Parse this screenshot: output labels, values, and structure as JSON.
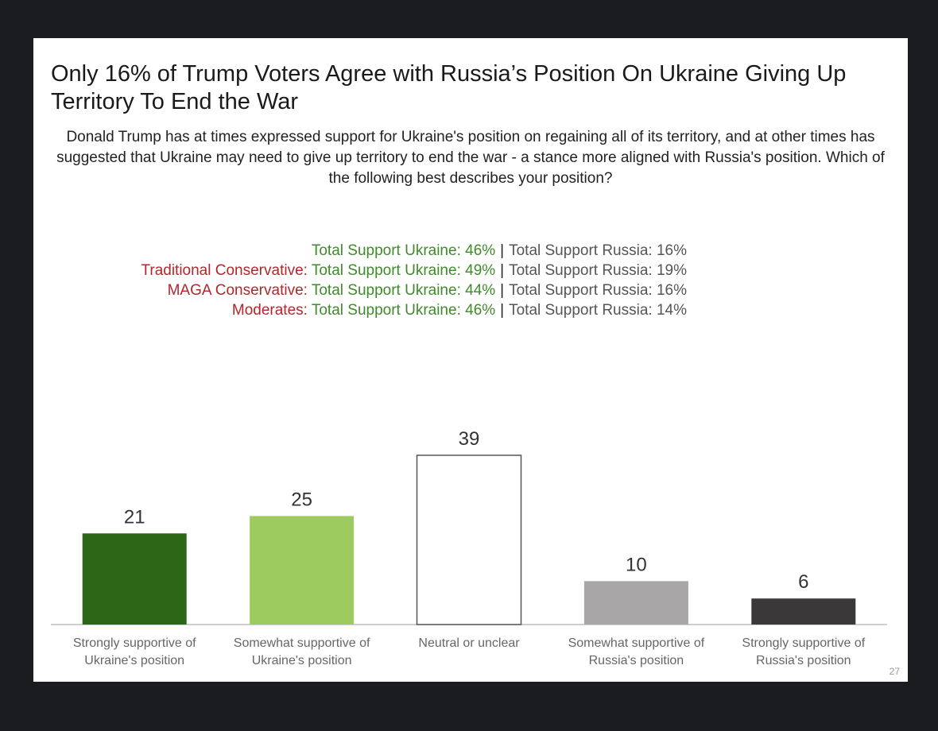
{
  "title": "Only 16% of Trump Voters Agree with Russia’s Position On Ukraine Giving Up Territory To End the War",
  "question": "Donald Trump has at times expressed support for Ukraine's position on regaining all of its territory, and at other times has suggested that Ukraine may need to give up territory to end the war - a stance more aligned with Russia's position. Which of the following best describes your position?",
  "summary": [
    {
      "segment": "",
      "ukraine": "Total Support Ukraine: 46%",
      "separator": "|",
      "russia": "Total Support Russia: 16%"
    },
    {
      "segment": "Traditional Conservative: ",
      "ukraine": "Total Support Ukraine: 49%",
      "separator": "|",
      "russia": "Total Support Russia: 19%"
    },
    {
      "segment": "MAGA Conservative: ",
      "ukraine": "Total Support Ukraine: 44%",
      "separator": "|",
      "russia": "Total Support Russia: 16%"
    },
    {
      "segment": "Moderates: ",
      "ukraine": "Total Support Ukraine: 46%",
      "separator": "|",
      "russia": "Total Support Russia: 14%"
    }
  ],
  "colors": {
    "segment_red": "#b3262b",
    "ukraine_green": "#3f8a2a",
    "bar_strong_ukraine": "#2b6516",
    "bar_somewhat_ukraine": "#9ecb5f",
    "bar_neutral": "#ffffff",
    "bar_somewhat_russia": "#a8a6a6",
    "bar_strong_russia": "#3a3838"
  },
  "page_number": "27",
  "chart_data": {
    "type": "bar",
    "categories": [
      [
        "Strongly supportive of",
        "Ukraine's position"
      ],
      [
        "Somewhat supportive of",
        "Ukraine's position"
      ],
      [
        "Neutral or unclear"
      ],
      [
        "Somewhat supportive of",
        "Russia's position"
      ],
      [
        "Strongly supportive of",
        "Russia's position"
      ]
    ],
    "values": [
      21,
      25,
      39,
      10,
      6
    ],
    "data_labels": [
      "21",
      "25",
      "39",
      "10",
      "6"
    ],
    "ylim": [
      0,
      39
    ],
    "grid": false,
    "legend": "none"
  }
}
